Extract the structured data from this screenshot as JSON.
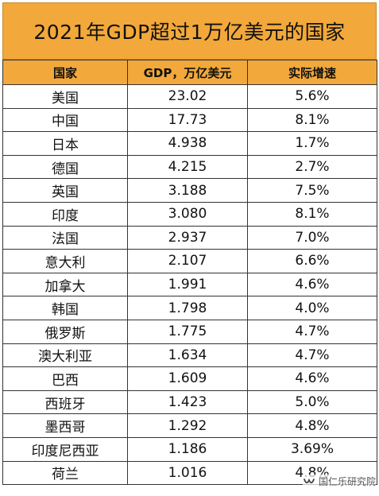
{
  "title": "2021年GDP超过1万亿美元的国家",
  "headers": [
    "国家",
    "GDP，万亿美元",
    "实际增速"
  ],
  "rows": [
    [
      "美国",
      "23.02",
      "5.6%"
    ],
    [
      "中国",
      "17.73",
      "8.1%"
    ],
    [
      "日本",
      "4.938",
      "1.7%"
    ],
    [
      "德国",
      "4.215",
      "2.7%"
    ],
    [
      "英国",
      "3.188",
      "7.5%"
    ],
    [
      "印度",
      "3.080",
      "8.1%"
    ],
    [
      "法国",
      "2.937",
      "7.0%"
    ],
    [
      "意大利",
      "2.107",
      "6.6%"
    ],
    [
      "加拿大",
      "1.991",
      "4.6%"
    ],
    [
      "韩国",
      "1.798",
      "4.0%"
    ],
    [
      "俄罗斯",
      "1.775",
      "4.7%"
    ],
    [
      "澳大利亚",
      "1.634",
      "4.7%"
    ],
    [
      "巴西",
      "1.609",
      "4.6%"
    ],
    [
      "西班牙",
      "1.423",
      "5.0%"
    ],
    [
      "墨西哥",
      "1.292",
      "4.8%"
    ],
    [
      "印度尼西亚",
      "1.186",
      "3.69%"
    ],
    [
      "荷兰",
      "1.016",
      "4.8%"
    ]
  ],
  "watermark": {
    "text": "国仁乐研究院",
    "icon": "wechat-channel-icon"
  },
  "colors": {
    "header_bg": "#f2a83a",
    "border": "#333333"
  }
}
